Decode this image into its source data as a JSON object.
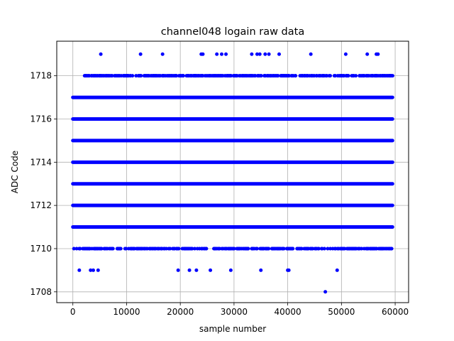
{
  "chart_data": {
    "type": "scatter",
    "title": "channel048 logain raw data",
    "xlabel": "sample number",
    "ylabel": "ADC Code",
    "xlim": [
      -3000,
      62500
    ],
    "ylim": [
      1707.5,
      1719.6
    ],
    "x_ticks": [
      0,
      10000,
      20000,
      30000,
      40000,
      50000,
      60000
    ],
    "y_ticks": [
      1708,
      1710,
      1712,
      1714,
      1716,
      1718
    ],
    "grid": true,
    "marker_color": "#0000ff",
    "series": [
      {
        "dense_levels": [
          {
            "y": 1711,
            "x_start": 0,
            "x_end": 59500
          },
          {
            "y": 1712,
            "x_start": 0,
            "x_end": 59500
          },
          {
            "y": 1713,
            "x_start": 0,
            "x_end": 59500
          },
          {
            "y": 1714,
            "x_start": 0,
            "x_end": 59500
          },
          {
            "y": 1715,
            "x_start": 0,
            "x_end": 59500
          },
          {
            "y": 1716,
            "x_start": 0,
            "x_end": 59500
          },
          {
            "y": 1717,
            "x_start": 0,
            "x_end": 59500
          }
        ],
        "points": [
          {
            "x": 47000,
            "y": 1708
          },
          {
            "x": 1200,
            "y": 1709
          },
          {
            "x": 3300,
            "y": 1709
          },
          {
            "x": 3800,
            "y": 1709
          },
          {
            "x": 4700,
            "y": 1709
          },
          {
            "x": 19600,
            "y": 1709
          },
          {
            "x": 21700,
            "y": 1709
          },
          {
            "x": 23000,
            "y": 1709
          },
          {
            "x": 25600,
            "y": 1709
          },
          {
            "x": 29400,
            "y": 1709
          },
          {
            "x": 35000,
            "y": 1709
          },
          {
            "x": 40000,
            "y": 1709
          },
          {
            "x": 40200,
            "y": 1709
          },
          {
            "x": 49200,
            "y": 1709
          },
          {
            "x": 5200,
            "y": 1719
          },
          {
            "x": 12600,
            "y": 1719
          },
          {
            "x": 16700,
            "y": 1719
          },
          {
            "x": 23900,
            "y": 1719
          },
          {
            "x": 24200,
            "y": 1719
          },
          {
            "x": 26800,
            "y": 1719
          },
          {
            "x": 27700,
            "y": 1719
          },
          {
            "x": 28500,
            "y": 1719
          },
          {
            "x": 33300,
            "y": 1719
          },
          {
            "x": 34300,
            "y": 1719
          },
          {
            "x": 34800,
            "y": 1719
          },
          {
            "x": 35800,
            "y": 1719
          },
          {
            "x": 36500,
            "y": 1719
          },
          {
            "x": 38400,
            "y": 1719
          },
          {
            "x": 44300,
            "y": 1719
          },
          {
            "x": 50800,
            "y": 1719
          },
          {
            "x": 54800,
            "y": 1719
          },
          {
            "x": 56500,
            "y": 1719
          },
          {
            "x": 56800,
            "y": 1719
          }
        ],
        "sparse_levels": [
          {
            "y": 1710,
            "x_start": 0,
            "x_end": 59500,
            "density": 0.55
          },
          {
            "y": 1718,
            "x_start": 1700,
            "x_end": 59500,
            "density": 0.6
          }
        ]
      }
    ]
  }
}
